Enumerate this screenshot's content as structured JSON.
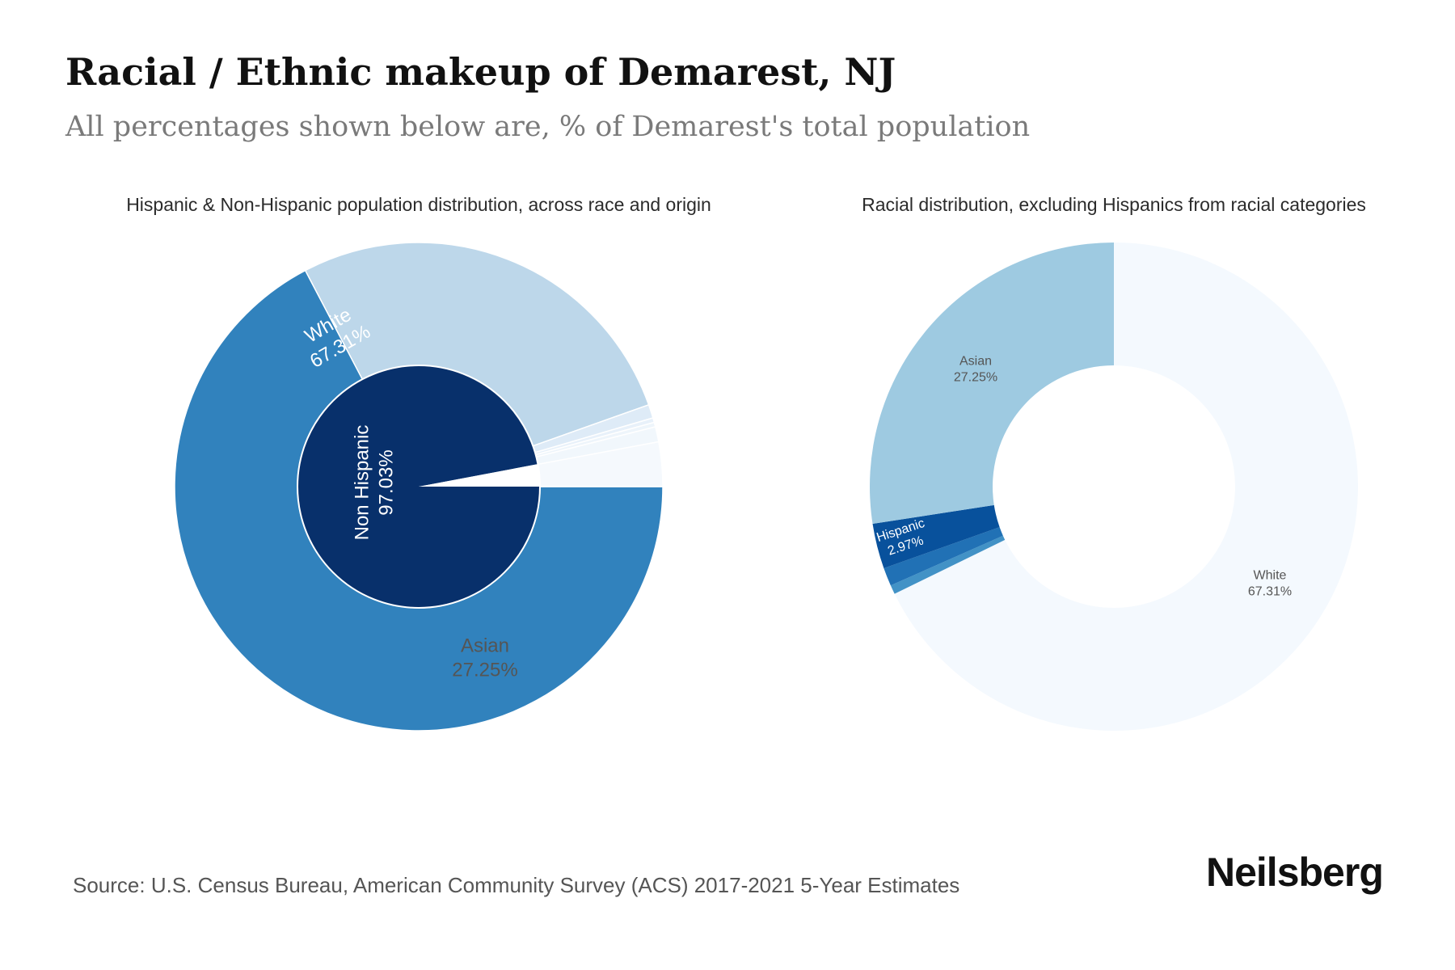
{
  "title": "Racial / Ethnic makeup of Demarest, NJ",
  "subtitle": "All percentages shown below are, % of Demarest's total population",
  "source": "Source: U.S. Census Bureau, American Community Survey (ACS) 2017-2021 5-Year Estimates",
  "brand": "Neilsberg",
  "chart_data": [
    {
      "type": "pie",
      "title": "Hispanic & Non-Hispanic population distribution, across race and origin",
      "inner_ring": {
        "slices": [
          {
            "label": "Non Hispanic",
            "display": "97.03%",
            "value": 97.03,
            "color": "#08306b",
            "shown": true
          },
          {
            "label": "Hispanic",
            "display": "2.97%",
            "value": 2.97,
            "color": "#ffffff",
            "shown": false
          }
        ]
      },
      "outer_ring": {
        "slices": [
          {
            "label": "White",
            "display": "67.31%",
            "value": 67.31,
            "color": "#3182bd",
            "shown": true
          },
          {
            "label": "Asian",
            "display": "27.25%",
            "value": 27.25,
            "color": "#bdd7ea",
            "shown": true
          },
          {
            "label": "",
            "display": "",
            "value": 0.9,
            "color": "#deebf7",
            "shown": false
          },
          {
            "label": "",
            "display": "",
            "value": 0.3,
            "color": "#e8f1fa",
            "shown": false
          },
          {
            "label": "",
            "display": "",
            "value": 0.3,
            "color": "#eef5fb",
            "shown": false
          },
          {
            "label": "",
            "display": "",
            "value": 1.0,
            "color": "#f1f7fc",
            "shown": false
          },
          {
            "label": "",
            "display": "",
            "value": 2.94,
            "color": "#f5f9fd",
            "shown": false
          }
        ]
      }
    },
    {
      "type": "pie",
      "title": "Racial distribution, excluding Hispanics from racial categories",
      "slices": [
        {
          "label": "White",
          "display": "67.31%",
          "value": 67.31,
          "color": "#f4f9fe",
          "shown": true
        },
        {
          "label": "",
          "display": "",
          "value": 0.6,
          "color": "#4292c6",
          "shown": false
        },
        {
          "label": "",
          "display": "",
          "value": 1.2,
          "color": "#2171b5",
          "shown": false
        },
        {
          "label": "Hispanic",
          "display": "2.97%",
          "value": 2.97,
          "color": "#08519c",
          "shown": true
        },
        {
          "label": "Asian",
          "display": "27.25%",
          "value": 27.25,
          "color": "#9ecae1",
          "shown": true
        }
      ]
    }
  ]
}
